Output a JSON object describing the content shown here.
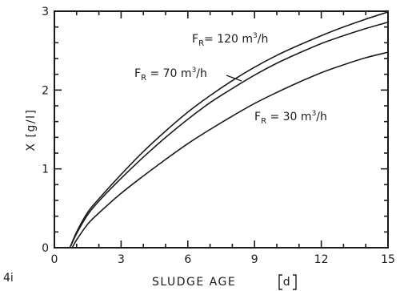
{
  "figure_tag": "4i",
  "chart_data": {
    "type": "line",
    "xlabel": "SLUDGE AGE",
    "xunit": "d",
    "ylabel": "X",
    "yunit": "g/l",
    "xlim": [
      0,
      15
    ],
    "ylim": [
      0,
      3
    ],
    "x_ticks": [
      0,
      3,
      6,
      9,
      12,
      15
    ],
    "y_ticks": [
      0,
      1,
      2,
      3
    ],
    "grid": false,
    "series": [
      {
        "name": "F_R = 120 m³/h",
        "label": {
          "main": "F",
          "sub": "R",
          "rest": "= 120 m",
          "sup": "3",
          "tail": "/h"
        },
        "x": [
          0.7,
          1,
          1.5,
          2,
          3,
          4,
          5,
          6,
          7,
          8,
          9,
          10,
          11,
          12,
          13,
          14,
          15
        ],
        "values": [
          0.0,
          0.2,
          0.45,
          0.62,
          0.93,
          1.22,
          1.48,
          1.72,
          1.93,
          2.12,
          2.29,
          2.44,
          2.57,
          2.69,
          2.8,
          2.9,
          2.99
        ]
      },
      {
        "name": "F_R = 70 m³/h",
        "label": {
          "main": "F",
          "sub": "R",
          "rest": " = 70 m",
          "sup": "3",
          "tail": "/h"
        },
        "x": [
          0.7,
          1,
          1.5,
          2,
          3,
          4,
          5,
          6,
          7,
          8,
          9,
          10,
          11,
          12,
          13,
          14,
          15
        ],
        "values": [
          0.0,
          0.18,
          0.42,
          0.59,
          0.88,
          1.15,
          1.4,
          1.63,
          1.84,
          2.02,
          2.19,
          2.34,
          2.47,
          2.59,
          2.69,
          2.78,
          2.86
        ]
      },
      {
        "name": "F_R = 30 m³/h",
        "label": {
          "main": "F",
          "sub": "R",
          "rest": " = 30 m",
          "sup": "3",
          "tail": "/h"
        },
        "x": [
          0.8,
          1,
          1.5,
          2,
          3,
          4,
          5,
          6,
          7,
          8,
          9,
          10,
          11,
          12,
          13,
          14,
          15
        ],
        "values": [
          0.0,
          0.1,
          0.3,
          0.44,
          0.69,
          0.91,
          1.12,
          1.32,
          1.5,
          1.67,
          1.83,
          1.97,
          2.1,
          2.22,
          2.32,
          2.41,
          2.48
        ]
      }
    ]
  }
}
